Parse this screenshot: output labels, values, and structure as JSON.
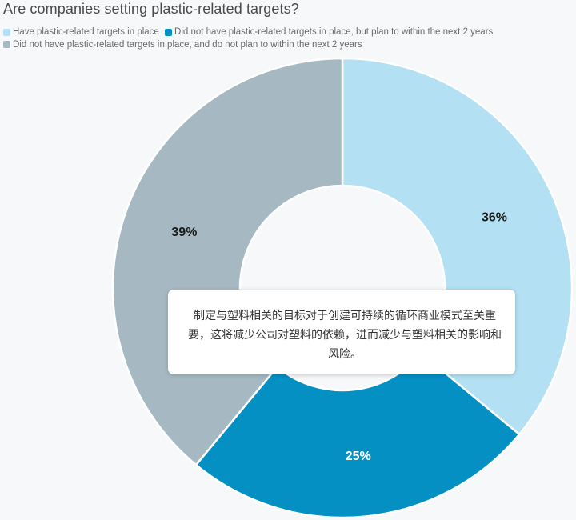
{
  "chart_data": {
    "type": "pie",
    "title": "Are companies setting plastic-related targets?",
    "donut": true,
    "categories": [
      "Have plastic-related targets in place",
      "Did not have plastic-related targets in place, but plan to within the next 2 years",
      "Did not have plastic-related targets in place, and do not plan to within the next 2 years"
    ],
    "values": [
      36,
      25,
      39
    ],
    "data_labels": [
      "36%",
      "25%",
      "39%"
    ],
    "colors": [
      "#b3e0f2",
      "#0590c4",
      "#a6b9c2"
    ],
    "label_colors": [
      "#1a1a1a",
      "#ffffff",
      "#1a1a1a"
    ],
    "legend_placement": "top-left"
  },
  "tooltip": {
    "text": "制定与塑料相关的目标对于创建可持续的循环商业模式至关重要，这将减少公司对塑料的依赖，进而减少与塑料相关的影响和风险。"
  }
}
